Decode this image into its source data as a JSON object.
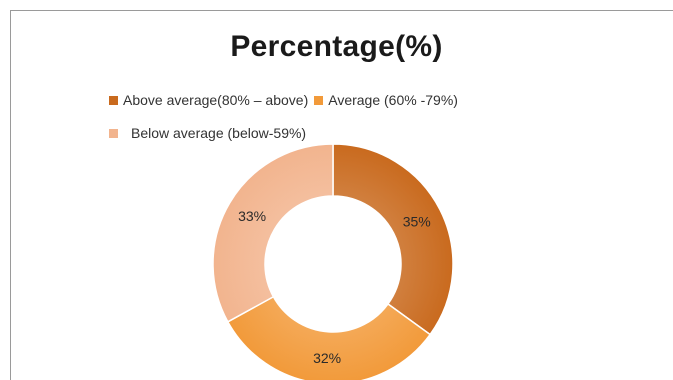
{
  "chart_data": {
    "type": "pie",
    "title": "Percentage(%)",
    "donut": true,
    "legend_position": "top",
    "slices": [
      {
        "label": "Above average(80% – above)",
        "value": 35,
        "value_label": "35%",
        "color": "#c96a1e"
      },
      {
        "label": "Average (60% -79%)",
        "value": 32,
        "value_label": "32%",
        "color": "#f29a3a"
      },
      {
        "label": "Below average (below-59%)",
        "value": 33,
        "value_label": "33%",
        "color": "#f2b48e"
      }
    ]
  }
}
